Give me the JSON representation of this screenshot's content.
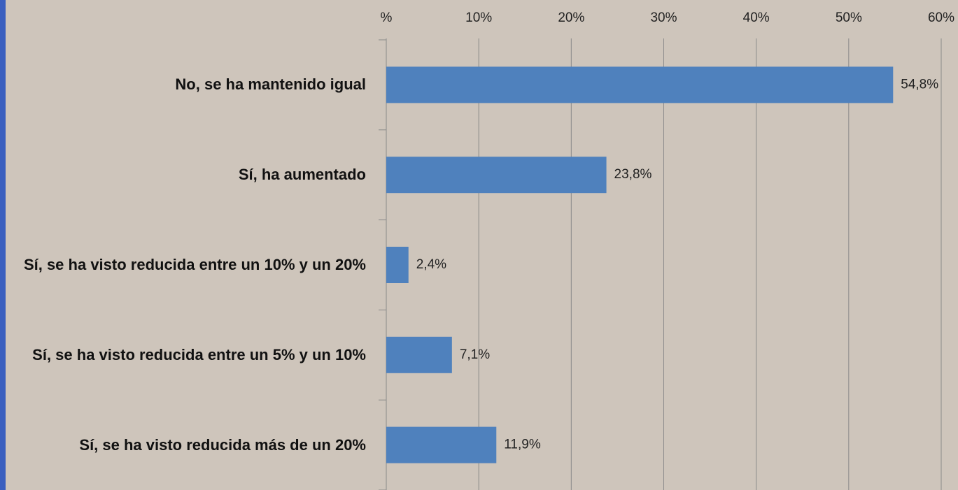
{
  "chart_data": {
    "type": "barh",
    "categories": [
      "No, se ha mantenido igual",
      "Sí, ha aumentado",
      "Sí, se ha visto reducida entre un 10% y un 20%",
      "Sí, se ha visto reducida entre un 5% y un 10%",
      "Sí, se ha visto reducida más de un 20%"
    ],
    "values": [
      54.8,
      23.8,
      2.4,
      7.1,
      11.9
    ],
    "value_labels": [
      "54,8%",
      "23,8%",
      "2,4%",
      "7,1%",
      "11,9%"
    ],
    "color": "#4f81bd",
    "xlim": [
      0,
      60
    ],
    "xticks": [
      {
        "value": 0,
        "label": "%"
      },
      {
        "value": 10,
        "label": "10%"
      },
      {
        "value": 20,
        "label": "20%"
      },
      {
        "value": 30,
        "label": "30%"
      },
      {
        "value": 40,
        "label": "40%"
      },
      {
        "value": 50,
        "label": "50%"
      },
      {
        "value": 60,
        "label": "60%"
      }
    ],
    "grid": true
  }
}
